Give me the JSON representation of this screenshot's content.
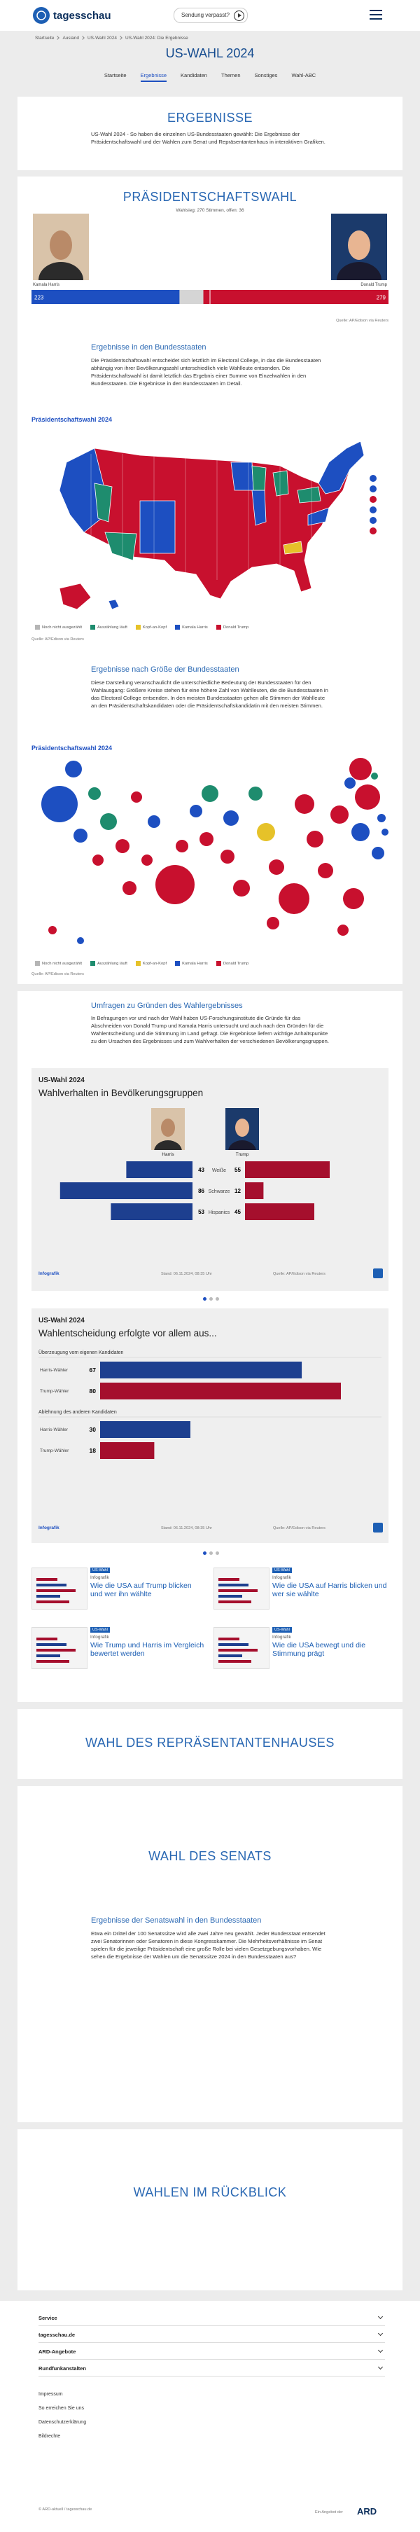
{
  "header": {
    "logo": "tagesschau",
    "missed": "Sendung verpasst?"
  },
  "breadcrumb": [
    "Startseite",
    "Ausland",
    "US-Wahl 2024",
    "US-Wahl 2024: Die Ergebnisse"
  ],
  "page_title": "US-WAHL 2024",
  "tabs": [
    "Startseite",
    "Ergebnisse",
    "Kandidaten",
    "Themen",
    "Sonstiges",
    "Wahl-ABC"
  ],
  "results": {
    "heading": "ERGEBNISSE",
    "text": "US-Wahl 2024 - So haben die einzelnen US-Bundesstaaten gewählt: Die Ergebnisse der Präsidentschaftswahl und der Wahlen zum Senat und Repräsentantenhaus in interaktiven Grafiken."
  },
  "president": {
    "heading": "PRÄSIDENTSCHAFTSWAHL",
    "status": "Wahlsieg: 270 Stimmen, offen: 36",
    "candidates": [
      {
        "name": "Kamala Harris",
        "electors": 223,
        "color": "#1d4fc1"
      },
      {
        "name": "Donald Trump",
        "electors": 279,
        "color": "#c8102e"
      }
    ],
    "source": "Quelle: AP/Edison via Reuters"
  },
  "states": {
    "heading": "Ergebnisse in den Bundesstaaten",
    "text": "Die Präsidentschaftswahl entscheidet sich letztlich im Electoral College, in das die Bundesstaaten abhängig von ihrer Bevölkerungszahl unterschiedlich viele Wahlleute entsenden. Die Präsidentschaftswahl ist damit letztlich das Ergebnis einer Summe von Einzelwahlen in den Bundesstaaten. Die Ergebnisse in den Bundesstaaten im Detail.",
    "map_title": "Präsidentschaftswahl 2024",
    "legend": [
      {
        "label": "Noch nicht ausgezählt",
        "color": "#b5b5b5"
      },
      {
        "label": "Auszählung läuft",
        "color": "#1e8c6e"
      },
      {
        "label": "Kopf-an-Kopf",
        "color": "#e6c229"
      },
      {
        "label": "Kamala Harris",
        "color": "#1d4fc1"
      },
      {
        "label": "Donald Trump",
        "color": "#c8102e"
      }
    ],
    "source": "Quelle: AP/Edison via Reuters"
  },
  "size": {
    "heading": "Ergebnisse nach Größe der Bundesstaaten",
    "text": "Diese Darstellung veranschaulicht die unterschiedliche Bedeutung der Bundesstaaten für den Wahlausgang: Größere Kreise stehen für eine höhere Zahl von Wahlleuten, die die Bundesstaaten in das Electoral College entsenden. In den meisten Bundesstaaten gehen alle Stimmen der Wahlleute an den Präsidentschaftskandidaten oder die Präsidentschaftskandidatin mit den meisten Stimmen.",
    "map_title": "Präsidentschaftswahl 2024",
    "source": "Quelle: AP/Edison via Reuters"
  },
  "polls": {
    "heading": "Umfragen zu Gründen des Wahlergebnisses",
    "text": "In Befragungen vor und nach der Wahl haben US-Forschungsinstitute die Gründe für das Abschneiden von Donald Trump und Kamala Harris untersucht und auch nach den Gründen für die Wahlentscheidung und die Stimmung im Land gefragt. Die Ergebnisse liefern wichtige Anhaltspunkte zu den Ursachen des Ergebnisses und zum Wahlverhalten der verschiedenen Bevölkerungsgruppen.",
    "graphics": [
      {
        "kicker": "US-Wahl 2024",
        "title": "Wahlverhalten in Bevölkerungsgruppen",
        "columns": [
          "Harris",
          "Trump"
        ],
        "groups": [
          {
            "label": "Weiße",
            "harris": 43,
            "trump": 55
          },
          {
            "label": "Schwarze",
            "harris": 86,
            "trump": 12
          },
          {
            "label": "Hispanics",
            "harris": 53,
            "trump": 45
          }
        ],
        "brand": "Infografik",
        "stand": "Stand: 06.11.2024, 08:35 Uhr",
        "source": "Quelle: AP/Edison via Reuters"
      },
      {
        "kicker": "US-Wahl 2024",
        "title": "Wahlentscheidung erfolgte vor allem aus...",
        "sections": [
          {
            "label": "Überzeugung vom eigenen Kandidaten",
            "rows": [
              {
                "label": "Harris-Wähler",
                "value": 67
              },
              {
                "label": "Trump-Wähler",
                "value": 80
              }
            ]
          },
          {
            "label": "Ablehnung des anderen Kandidaten",
            "rows": [
              {
                "label": "Harris-Wähler",
                "value": 30
              },
              {
                "label": "Trump-Wähler",
                "value": 18
              }
            ]
          }
        ],
        "brand": "Infografik",
        "stand": "Stand: 06.11.2024, 08:35 Uhr",
        "source": "Quelle: AP/Edison via Reuters"
      }
    ]
  },
  "teasers": [
    {
      "tag": "US-Wahl",
      "kicker": "Infografik",
      "title": "Wie die USA auf Trump blicken und wer ihn wählte"
    },
    {
      "tag": "US-Wahl",
      "kicker": "Infografik",
      "title": "Wie die USA auf Harris blicken und wer sie wählte"
    },
    {
      "tag": "US-Wahl",
      "kicker": "Infografik",
      "title": "Wie Trump und Harris im Vergleich bewertet werden"
    },
    {
      "tag": "US-Wahl",
      "kicker": "Infografik",
      "title": "Wie die USA bewegt und die Stimmung prägt"
    }
  ],
  "house": {
    "heading": "WAHL DES REPRÄSENTANTENHAUSES"
  },
  "senate": {
    "heading": "WAHL DES SENATS",
    "subheading": "Ergebnisse der Senatswahl in den Bundesstaaten",
    "text": "Etwa ein Drittel der 100 Senatssitze wird alle zwei Jahre neu gewählt. Jeder Bundesstaat entsendet zwei Senatorinnen oder Senatoren in diese Kongresskammer. Die Mehrheitsverhältnisse im Senat spielen für die jeweilige Präsidentschaft eine große Rolle bei vielen Gesetzgebungsvorhaben. Wie sehen die Ergebnisse der Wahlen um die Senatssitze 2024 in den Bundesstaaten aus?"
  },
  "review": {
    "heading": "WAHLEN IM RÜCKBLICK"
  },
  "footer": {
    "menu": [
      "Service",
      "tagesschau.de",
      "ARD-Angebote",
      "Rundfunkanstalten"
    ],
    "links": [
      "Impressum",
      "So erreichen Sie uns",
      "Datenschutzerklärung",
      "Bildrechte"
    ],
    "copyright": "© ARD-aktuell / tagesschau.de",
    "ard_claim": "Ein Angebot der",
    "ard": "ARD"
  }
}
